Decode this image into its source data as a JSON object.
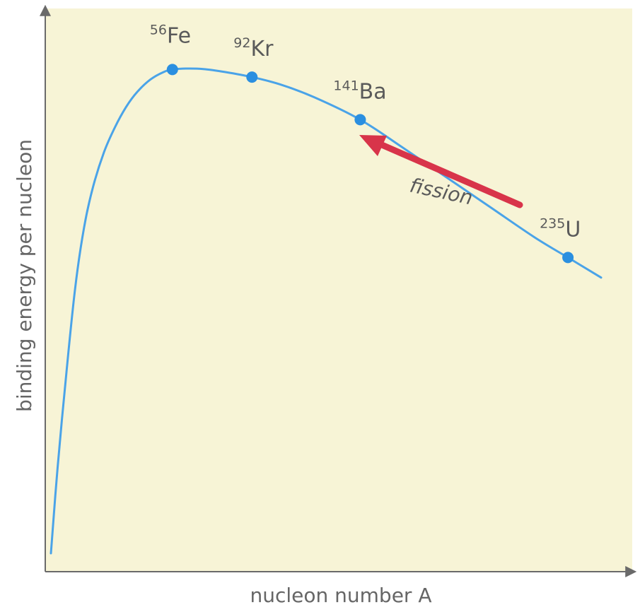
{
  "chart_data": {
    "type": "line",
    "xlabel": "nucleon number A",
    "ylabel": "binding energy per nucleon",
    "grid": false,
    "ticks": "none",
    "curve": {
      "x": [
        1,
        4,
        8,
        12,
        16,
        20,
        25,
        30,
        35,
        40,
        46,
        52,
        56,
        62,
        70,
        80,
        92,
        105,
        120,
        141,
        160,
        180,
        200,
        220,
        235,
        250
      ],
      "y": [
        0.01,
        0.18,
        0.37,
        0.54,
        0.66,
        0.74,
        0.81,
        0.86,
        0.9,
        0.93,
        0.955,
        0.97,
        0.975,
        0.977,
        0.976,
        0.97,
        0.96,
        0.945,
        0.92,
        0.875,
        0.82,
        0.76,
        0.7,
        0.64,
        0.6,
        0.56
      ],
      "color": "#4aa3e8"
    },
    "points": [
      {
        "mass": "56",
        "symbol": "Fe",
        "x": 56,
        "y": 0.975
      },
      {
        "mass": "92",
        "symbol": "Kr",
        "x": 92,
        "y": 0.96
      },
      {
        "mass": "141",
        "symbol": "Ba",
        "x": 141,
        "y": 0.875
      },
      {
        "mass": "235",
        "symbol": "U",
        "x": 235,
        "y": 0.6
      }
    ],
    "point_color": "#2b8fe0",
    "annotation": {
      "text": "fission",
      "arrow_color": "#d8344a"
    },
    "colors": {
      "background": "#f7f4d6",
      "axis": "#6a6a6a"
    }
  }
}
